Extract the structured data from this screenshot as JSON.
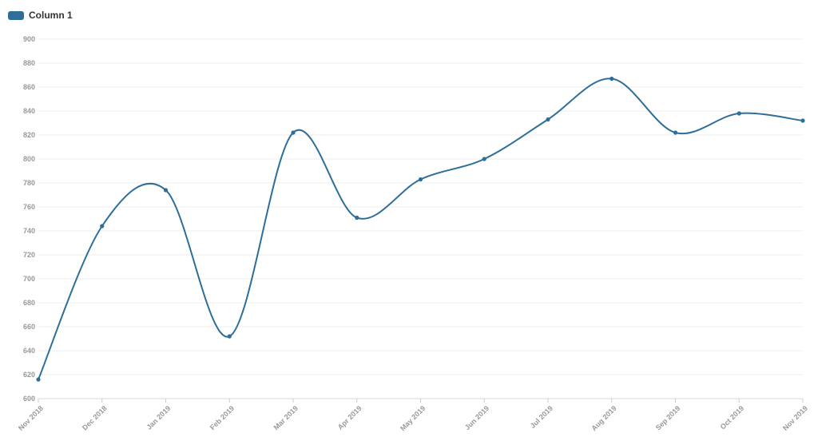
{
  "chart_data": {
    "type": "line",
    "title": "",
    "xlabel": "",
    "ylabel": "",
    "categories": [
      "Nov 2018",
      "Dec 2018",
      "Jan 2019",
      "Feb 2019",
      "Mar 2019",
      "Apr 2019",
      "May 2019",
      "Jun 2019",
      "Jul 2019",
      "Aug 2019",
      "Sep 2019",
      "Oct 2019",
      "Nov 2019"
    ],
    "series": [
      {
        "name": "Column 1",
        "color": "#2e6e99",
        "values": [
          616,
          744,
          774,
          652,
          822,
          751,
          783,
          800,
          833,
          867,
          822,
          838,
          832
        ]
      }
    ],
    "ylim": [
      600,
      900
    ],
    "yticks": [
      600,
      620,
      640,
      660,
      680,
      700,
      720,
      740,
      760,
      780,
      800,
      820,
      840,
      860,
      880,
      900
    ],
    "grid": true,
    "legend": "top-left"
  }
}
